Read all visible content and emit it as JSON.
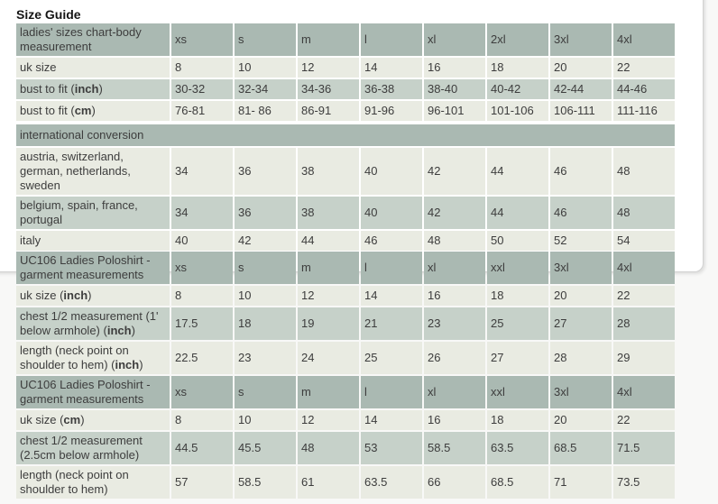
{
  "page": {
    "title": "Size Guide",
    "background_color": "#f8f8f7",
    "card_background": "#ffffff",
    "card_border_color": "#d2d2d2"
  },
  "colors": {
    "header_row": "#aab9b2",
    "dark_row": "#c6d1c9",
    "light_row": "#e9ebe2",
    "text": "#3d3d3d"
  },
  "tables": [
    {
      "name": "ladies-sizes-body-measurement",
      "title_label": {
        "pre": "ladies' sizes chart-body measurement",
        "bold": "",
        "post": ""
      },
      "size_headers": [
        "xs",
        "s",
        "m",
        "l",
        "xl",
        "2xl",
        "3xl",
        "4xl"
      ],
      "rows": [
        {
          "label": {
            "pre": "uk size",
            "bold": "",
            "post": ""
          },
          "values": [
            "8",
            "10",
            "12",
            "14",
            "16",
            "18",
            "20",
            "22"
          ]
        },
        {
          "label": {
            "pre": "bust to fit (",
            "bold": "inch",
            "post": ")"
          },
          "values": [
            "30-32",
            "32-34",
            "34-36",
            "36-38",
            "38-40",
            "40-42",
            "42-44",
            "44-46"
          ]
        },
        {
          "label": {
            "pre": "bust to fit (",
            "bold": "cm",
            "post": ")"
          },
          "values": [
            "76-81",
            "81- 86",
            "86-91",
            "91-96",
            "96-101",
            "101-106",
            "106-111",
            "111-116"
          ]
        }
      ]
    },
    {
      "name": "international-conversion",
      "title_label": {
        "pre": "international conversion",
        "bold": "",
        "post": ""
      },
      "size_headers": null,
      "rows": [
        {
          "label": {
            "pre": "austria, switzerland, german, netherlands, sweden",
            "bold": "",
            "post": ""
          },
          "values": [
            "34",
            "36",
            "38",
            "40",
            "42",
            "44",
            "46",
            "48"
          ]
        },
        {
          "label": {
            "pre": "belgium, spain, france, portugal",
            "bold": "",
            "post": ""
          },
          "values": [
            "34",
            "36",
            "38",
            "40",
            "42",
            "44",
            "46",
            "48"
          ]
        },
        {
          "label": {
            "pre": "italy",
            "bold": "",
            "post": ""
          },
          "values": [
            "40",
            "42",
            "44",
            "46",
            "48",
            "50",
            "52",
            "54"
          ]
        }
      ]
    },
    {
      "name": "uc106-garment-measurements-inch",
      "title_label": {
        "pre": "UC106 Ladies Poloshirt - garment measurements",
        "bold": "",
        "post": ""
      },
      "size_headers": [
        "xs",
        "s",
        "m",
        "l",
        "xl",
        "xxl",
        "3xl",
        "4xl"
      ],
      "rows": [
        {
          "label": {
            "pre": "uk size (",
            "bold": "inch",
            "post": ")"
          },
          "values": [
            "8",
            "10",
            "12",
            "14",
            "16",
            "18",
            "20",
            "22"
          ]
        },
        {
          "label": {
            "pre": "chest 1/2 measurement (1' below armhole) (",
            "bold": "inch",
            "post": ")"
          },
          "values": [
            "17.5",
            "18",
            "19",
            "21",
            "23",
            "25",
            "27",
            "28"
          ]
        },
        {
          "label": {
            "pre": "length (neck point on shoulder to hem) (",
            "bold": "inch",
            "post": ")"
          },
          "values": [
            "22.5",
            "23",
            "24",
            "25",
            "26",
            "27",
            "28",
            "29"
          ]
        }
      ]
    },
    {
      "name": "uc106-garment-measurements-cm",
      "title_label": {
        "pre": "UC106 Ladies Poloshirt - garment measurements",
        "bold": "",
        "post": ""
      },
      "size_headers": [
        "xs",
        "s",
        "m",
        "l",
        "xl",
        "xxl",
        "3xl",
        "4xl"
      ],
      "rows": [
        {
          "label": {
            "pre": "uk size (",
            "bold": "cm",
            "post": ")"
          },
          "values": [
            "8",
            "10",
            "12",
            "14",
            "16",
            "18",
            "20",
            "22"
          ]
        },
        {
          "label": {
            "pre": "chest 1/2 measurement (2.5cm below armhole)",
            "bold": "",
            "post": ""
          },
          "values": [
            "44.5",
            "45.5",
            "48",
            "53",
            "58.5",
            "63.5",
            "68.5",
            "71.5"
          ]
        },
        {
          "label": {
            "pre": "length (neck point on shoulder to hem)",
            "bold": "",
            "post": ""
          },
          "values": [
            "57",
            "58.5",
            "61",
            "63.5",
            "66",
            "68.5",
            "71",
            "73.5"
          ]
        }
      ]
    }
  ]
}
